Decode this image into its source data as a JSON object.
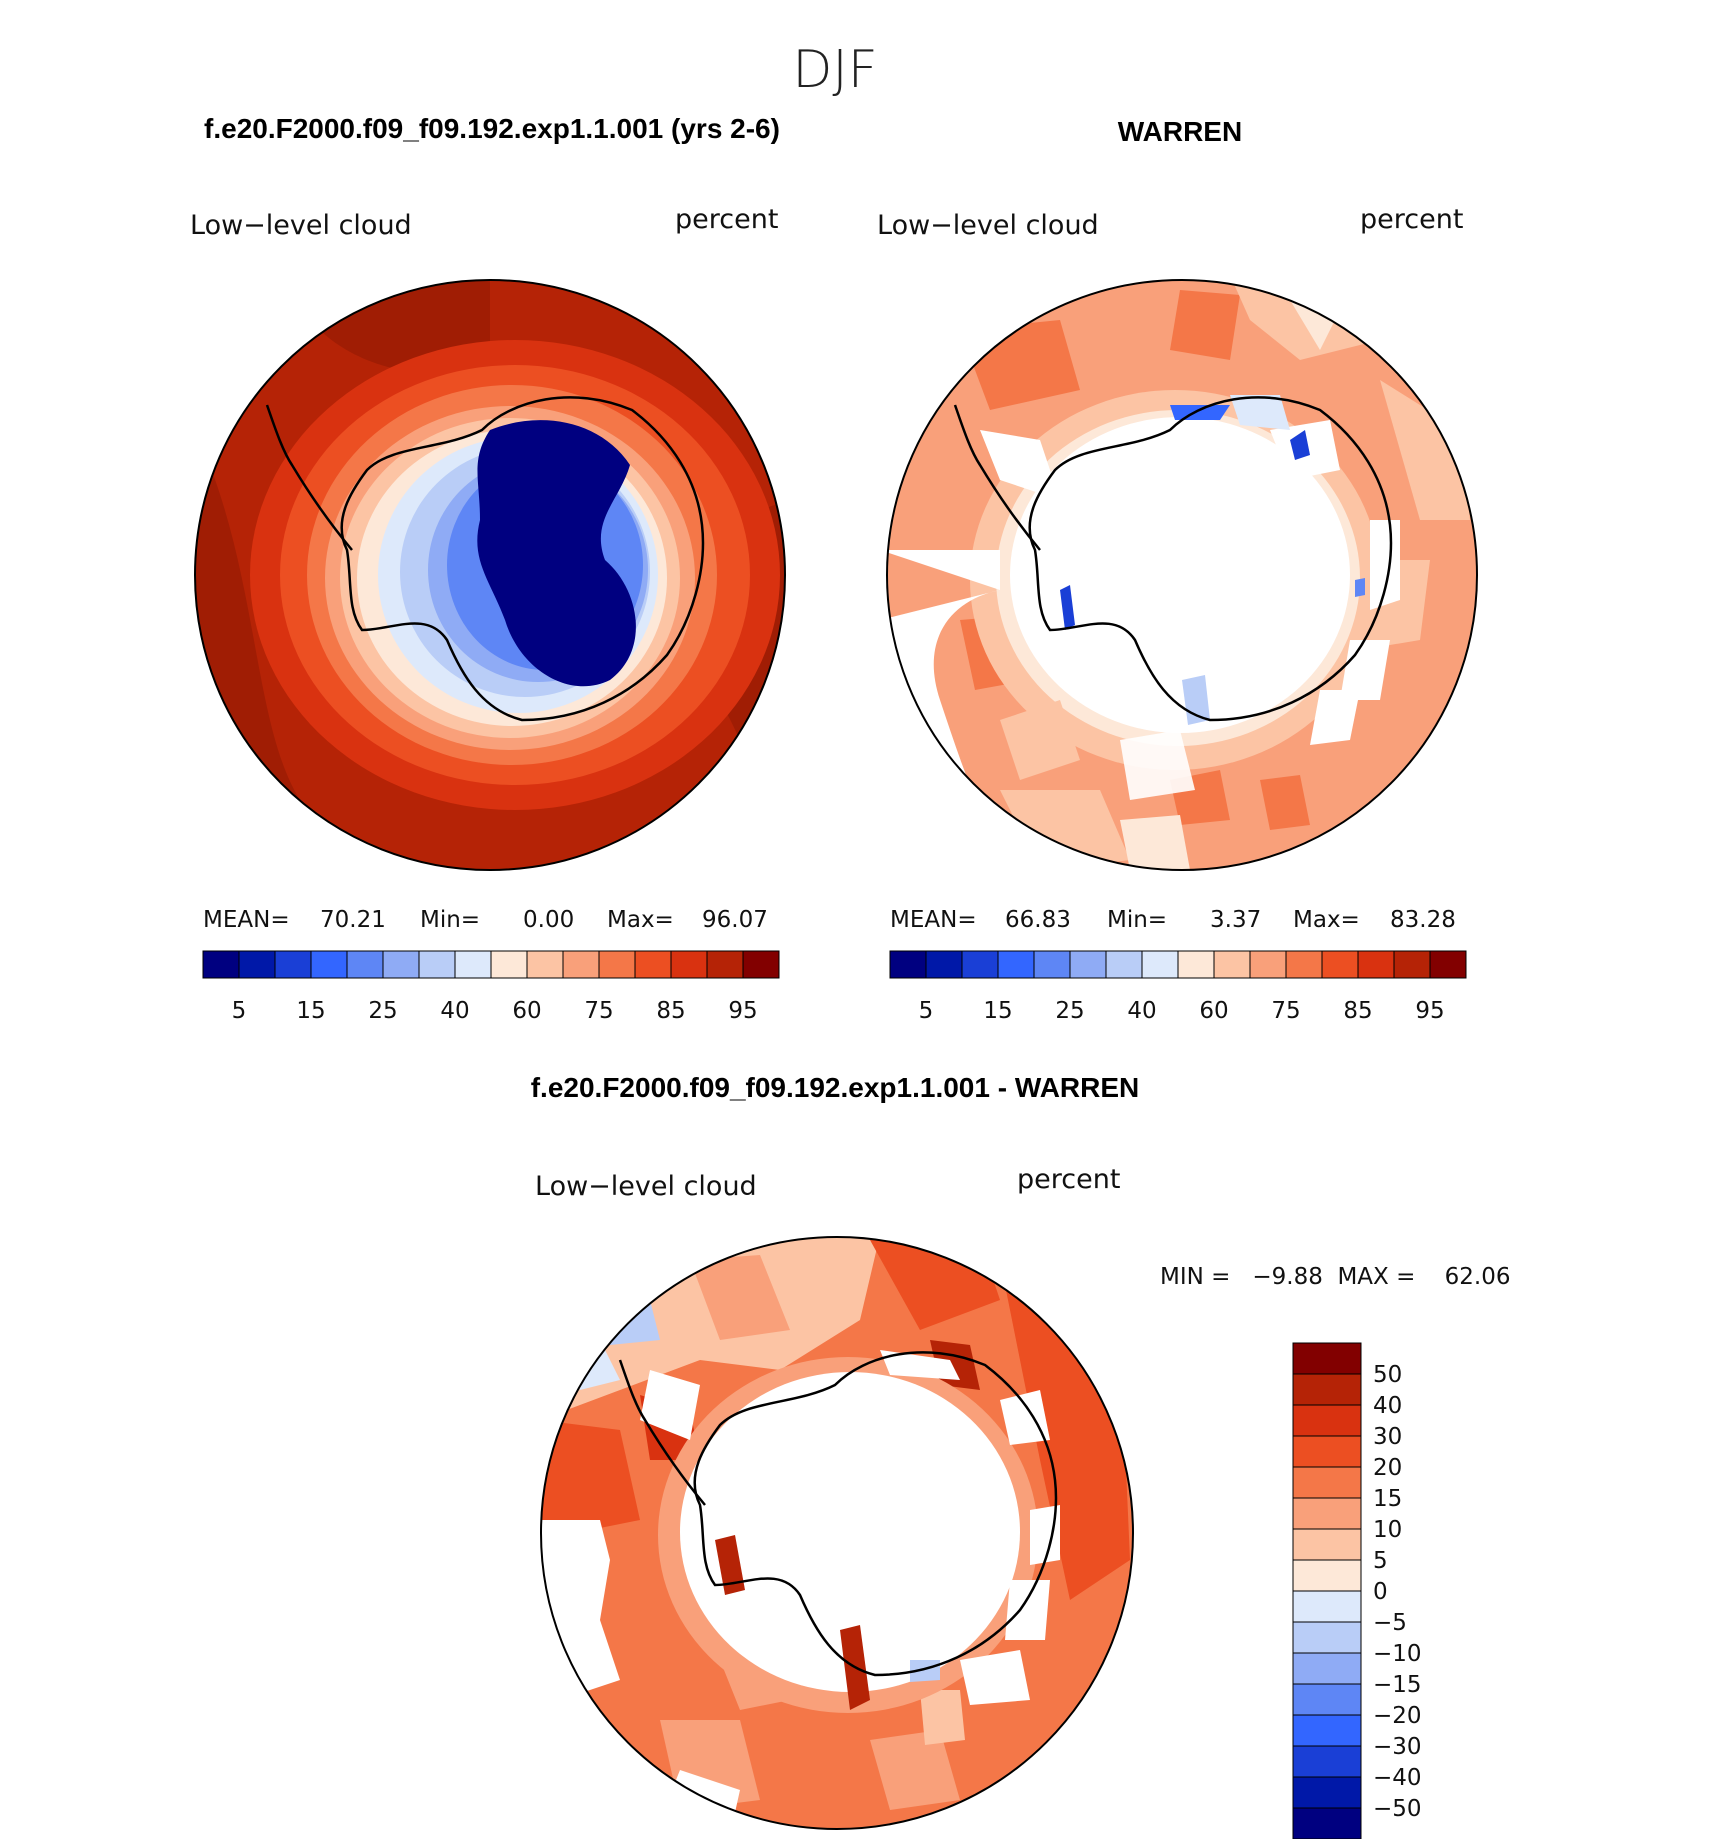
{
  "figure": {
    "season": "DJF",
    "top_titles": {
      "model": "f.e20.F2000.f09_f09.192.exp1.1.001 (yrs 2-6)",
      "obs": "WARREN"
    },
    "diff_title": "f.e20.F2000.f09_f09.192.exp1.1.001 - WARREN"
  },
  "panels": [
    {
      "id": "model",
      "variable": "Low−level cloud",
      "units": "percent",
      "stats": {
        "mean_label": "MEAN=",
        "mean": "70.21",
        "min_label": "Min=",
        "min": "0.00",
        "max_label": "Max=",
        "max": "96.07"
      },
      "colorbar_labels": [
        "5",
        "15",
        "25",
        "40",
        "60",
        "75",
        "85",
        "95"
      ]
    },
    {
      "id": "obs",
      "variable": "Low−level cloud",
      "units": "percent",
      "stats": {
        "mean_label": "MEAN=",
        "mean": "66.83",
        "min_label": "Min=",
        "min": "3.37",
        "max_label": "Max=",
        "max": "83.28"
      },
      "colorbar_labels": [
        "5",
        "15",
        "25",
        "40",
        "60",
        "75",
        "85",
        "95"
      ]
    },
    {
      "id": "diff",
      "variable": "Low−level cloud",
      "units": "percent",
      "stats_text": "MIN =   −9.88  MAX =    62.06",
      "colorbar_labels": [
        "50",
        "40",
        "30",
        "20",
        "15",
        "10",
        "5",
        "0",
        "−5",
        "−10",
        "−15",
        "−20",
        "−30",
        "−40",
        "−50"
      ]
    }
  ],
  "colors": {
    "abs_scale": [
      "#000080",
      "#0018a8",
      "#1a3fd6",
      "#3366ff",
      "#5e86f5",
      "#8fabf5",
      "#b9cdf7",
      "#dde9fb",
      "#fde8d8",
      "#fcc4a4",
      "#f9a07a",
      "#f47748",
      "#ec4f22",
      "#d93210",
      "#b52306",
      "#820000"
    ],
    "diff_scale": [
      "#820000",
      "#b52306",
      "#d93210",
      "#ec4f22",
      "#f47748",
      "#f9a07a",
      "#fcc4a4",
      "#fde8d8",
      "#dde9fb",
      "#b9cdf7",
      "#8fabf5",
      "#5e86f5",
      "#3366ff",
      "#1a3fd6",
      "#0018a8",
      "#000080"
    ],
    "outline": "#000000"
  }
}
